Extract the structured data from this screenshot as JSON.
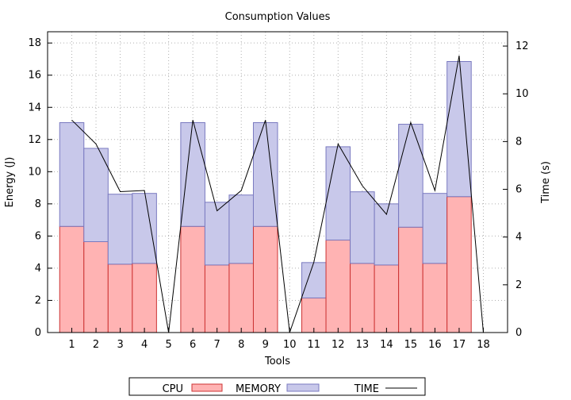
{
  "chart_data": {
    "type": "bar",
    "title": "Consumption Values",
    "xlabel": "Tools",
    "ylabel": "Energy (J)",
    "y2label": "Time (s)",
    "categories": [
      "1",
      "2",
      "3",
      "4",
      "5",
      "6",
      "7",
      "8",
      "9",
      "10",
      "11",
      "12",
      "13",
      "14",
      "15",
      "16",
      "17",
      "18"
    ],
    "ylim": [
      0,
      18.7
    ],
    "y2lim": [
      0,
      12.6
    ],
    "yticks": [
      0,
      2,
      4,
      6,
      8,
      10,
      12,
      14,
      16,
      18
    ],
    "y2ticks": [
      0,
      2,
      4,
      6,
      8,
      10,
      12
    ],
    "grid": true,
    "stacked": true,
    "legend_position": "bottom",
    "series": [
      {
        "name": "CPU",
        "kind": "bar-stack",
        "color": "#ffffff",
        "edge": "#ffffff",
        "values": [
          0,
          0,
          0,
          0,
          0,
          0,
          0,
          0,
          0,
          0,
          0,
          0,
          0,
          0,
          0,
          0,
          0,
          0
        ]
      },
      {
        "name": "MEMORY",
        "kind": "bar-stack",
        "color": "#ffb3b3",
        "edge": "#cc3333",
        "values": [
          6.6,
          5.65,
          4.25,
          4.3,
          0,
          6.6,
          4.2,
          4.3,
          6.6,
          0,
          2.15,
          5.75,
          4.3,
          4.2,
          6.55,
          4.3,
          8.45,
          0
        ]
      },
      {
        "name": "",
        "kind": "bar-stack",
        "color": "#c8c8ea",
        "edge": "#7a7ac0",
        "values": [
          6.45,
          5.8,
          4.35,
          4.35,
          0,
          6.45,
          3.9,
          4.25,
          6.45,
          0,
          2.2,
          5.8,
          4.45,
          3.8,
          6.4,
          4.35,
          8.4,
          0
        ]
      },
      {
        "name": "TIME",
        "kind": "line",
        "axis": "y2",
        "color": "#000000",
        "values": [
          8.9,
          7.9,
          5.9,
          5.95,
          0,
          8.9,
          5.1,
          5.95,
          8.9,
          0,
          2.95,
          7.9,
          6.15,
          4.95,
          8.8,
          5.95,
          11.6,
          0
        ]
      }
    ]
  }
}
